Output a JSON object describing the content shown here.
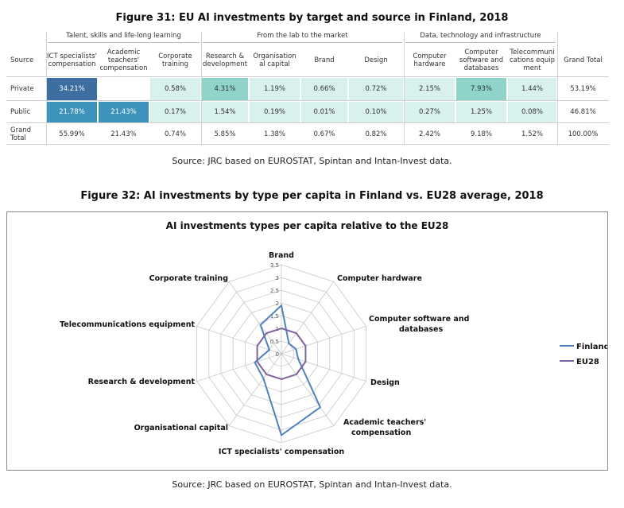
{
  "figure31": {
    "title": "Figure 31: EU AI investments by target and source in Finland, 2018",
    "source_note": "Source: JRC based on EUROSTAT, Spintan and Intan-Invest data.",
    "groups": [
      "Talent, skills and life-long learning",
      "From the lab to the market",
      "Data, technology and infrastructure"
    ],
    "row_header": "Source",
    "columns": [
      "ICT specialists' compensation",
      "Academic teachers' compensation",
      "Corporate training",
      "Research & development",
      "Organisation al capital",
      "Brand",
      "Design",
      "Computer hardware",
      "Computer software and databases",
      "Telecommuni cations equip ment",
      "Grand Total"
    ],
    "rows": [
      {
        "label": "Private",
        "values": [
          "34.21%",
          "",
          "0.58%",
          "4.31%",
          "1.19%",
          "0.66%",
          "0.72%",
          "2.15%",
          "7.93%",
          "1.44%",
          "53.19%"
        ]
      },
      {
        "label": "Public",
        "values": [
          "21.78%",
          "21.43%",
          "0.17%",
          "1.54%",
          "0.19%",
          "0.01%",
          "0.10%",
          "0.27%",
          "1.25%",
          "0.08%",
          "46.81%"
        ]
      },
      {
        "label": "Grand Total",
        "values": [
          "55.99%",
          "21.43%",
          "0.74%",
          "5.85%",
          "1.38%",
          "0.67%",
          "0.82%",
          "2.42%",
          "9.18%",
          "1.52%",
          "100.00%"
        ]
      }
    ],
    "colors": {
      "dark": "#3d6ea0",
      "medium": "#3e93bd",
      "teal": "#8fd3ca",
      "light": "#d9f1ec"
    }
  },
  "figure32": {
    "title": "Figure 32: AI investments by type per capita in Finland vs. EU28 average, 2018",
    "source_note": "Source: JRC based on EUROSTAT, Spintan and Intan-Invest data.",
    "chart_data": {
      "type": "radar",
      "title": "AI investments types per capita relative to the EU28",
      "categories": [
        "Brand",
        "Computer hardware",
        "Computer software and databases",
        "Design",
        "Academic teachers' compensation",
        "ICT specialists' compensation",
        "Organisational capital",
        "Research & development",
        "Telecommunications equipment",
        "Corporate training"
      ],
      "radial_ticks": [
        "0",
        "0.5",
        "1",
        "1.5",
        "2",
        "2.5",
        "3",
        "3.5"
      ],
      "rmax": 3.5,
      "series": [
        {
          "name": "Finland",
          "color": "#4f81bd",
          "values": [
            1.9,
            0.5,
            0.6,
            0.7,
            2.6,
            3.2,
            1.2,
            1.1,
            0.5,
            1.4
          ]
        },
        {
          "name": "EU28",
          "color": "#8064a2",
          "values": [
            1,
            1,
            1,
            1,
            1,
            1,
            1,
            1,
            1,
            1
          ]
        }
      ],
      "legend_position": "right",
      "grid": true
    }
  }
}
